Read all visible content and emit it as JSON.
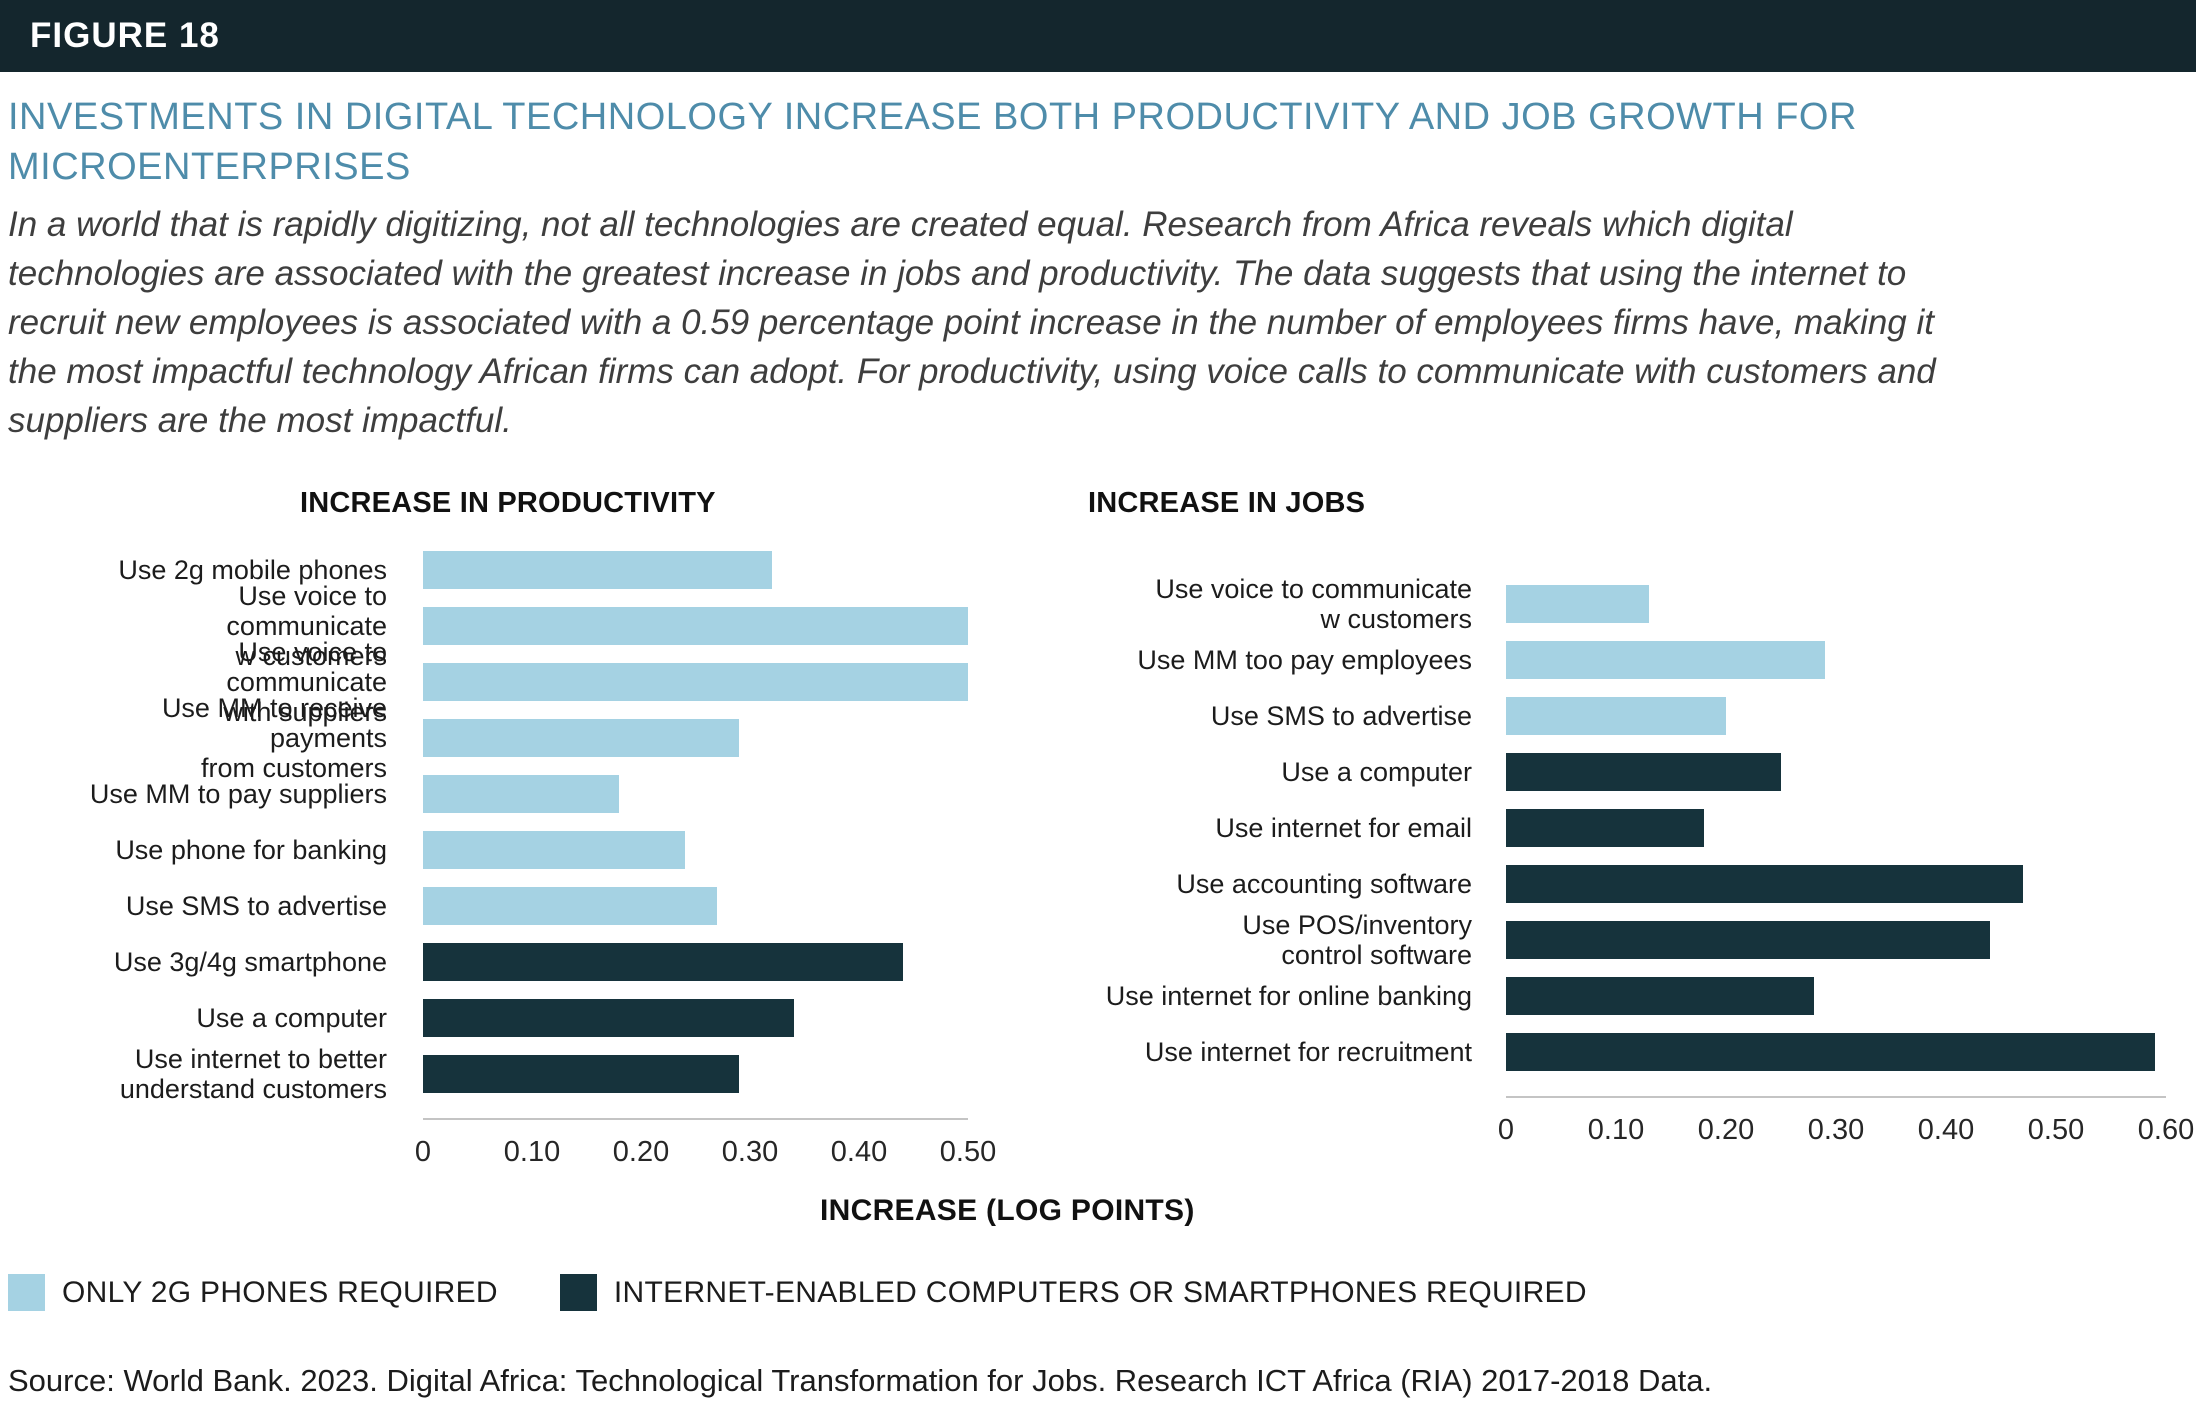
{
  "figure_label": "FIGURE 18",
  "title": "INVESTMENTS IN DIGITAL TECHNOLOGY INCREASE BOTH PRODUCTIVITY AND JOB GROWTH FOR MICROENTERPRISES",
  "description": "In a world that is rapidly digitizing, not all technologies are created equal. Research from Africa reveals which digital technologies are associated with the greatest increase in jobs and productivity. The data suggests that using the internet to recruit new employees is associated with a 0.59 percentage point increase in the number of employees firms have, making it the most impactful technology African firms can adopt. For productivity, using voice calls to communicate with customers and suppliers are the most impactful.",
  "colors": {
    "light": "#a5d2e3",
    "dark": "#16333c",
    "header_bg": "#14262d",
    "title_text": "#4e8caa",
    "axis_line": "#c4c4c4"
  },
  "xaxis_label": "INCREASE (LOG POINTS)",
  "legend": {
    "items": [
      {
        "label": "ONLY 2G PHONES REQUIRED",
        "color_key": "light"
      },
      {
        "label": "INTERNET-ENABLED COMPUTERS OR SMARTPHONES REQUIRED",
        "color_key": "dark"
      }
    ]
  },
  "source": "Source: World Bank. 2023. Digital Africa: Technological Transformation for Jobs. Research ICT Africa (RIA) 2017-2018 Data.",
  "chart_data": [
    {
      "type": "bar",
      "orientation": "horizontal",
      "title": "INCREASE IN PRODUCTIVITY",
      "xlabel": "INCREASE (LOG POINTS)",
      "xlim": [
        0,
        0.5
      ],
      "grid": false,
      "xtick_values": [
        0,
        0.1,
        0.2,
        0.3,
        0.4,
        0.5
      ],
      "xtick_labels": [
        "0",
        "0.10",
        "0.20",
        "0.30",
        "0.40",
        "0.50"
      ],
      "categories": [
        "Use 2g mobile phones",
        "Use voice to communicate\nw customers",
        "Use voice to communicate\nwith suppliers",
        "Use MM to receive payments\nfrom customers",
        "Use MM to pay suppliers",
        "Use phone for banking",
        "Use SMS to advertise",
        "Use 3g/4g smartphone",
        "Use a computer",
        "Use internet to better\nunderstand customers"
      ],
      "values": [
        0.32,
        0.5,
        0.5,
        0.29,
        0.18,
        0.24,
        0.27,
        0.44,
        0.34,
        0.29
      ],
      "bar_groups": [
        "light",
        "light",
        "light",
        "light",
        "light",
        "light",
        "light",
        "dark",
        "dark",
        "dark"
      ]
    },
    {
      "type": "bar",
      "orientation": "horizontal",
      "title": "INCREASE IN JOBS",
      "xlabel": "INCREASE (LOG POINTS)",
      "xlim": [
        0,
        0.6
      ],
      "grid": false,
      "xtick_values": [
        0,
        0.1,
        0.2,
        0.3,
        0.4,
        0.5,
        0.6
      ],
      "xtick_labels": [
        "0",
        "0.10",
        "0.20",
        "0.30",
        "0.40",
        "0.50",
        "0.60"
      ],
      "categories": [
        "Use voice to communicate\nw customers",
        "Use MM too pay employees",
        "Use SMS to advertise",
        "Use a computer",
        "Use internet for email",
        "Use accounting software",
        "Use POS/inventory\ncontrol software",
        "Use internet for online banking",
        "Use internet for recruitment"
      ],
      "values": [
        0.13,
        0.29,
        0.2,
        0.25,
        0.18,
        0.47,
        0.44,
        0.28,
        0.59
      ],
      "bar_groups": [
        "light",
        "light",
        "light",
        "dark",
        "dark",
        "dark",
        "dark",
        "dark",
        "dark"
      ]
    }
  ]
}
